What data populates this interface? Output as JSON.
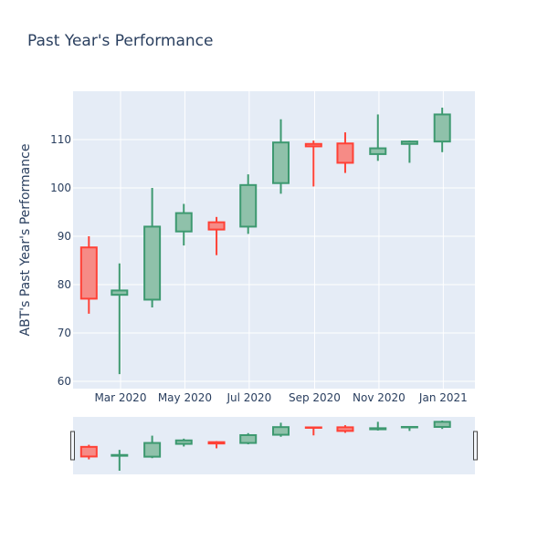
{
  "chart_data": {
    "type": "candlestick",
    "title": "Past Year's Performance",
    "xlabel": "",
    "ylabel": "ABT's Past Year's Performance",
    "ylim": [
      58.5,
      120
    ],
    "yticks": [
      60,
      70,
      80,
      90,
      100,
      110
    ],
    "xrange": [
      "2020-01-16",
      "2021-01-31"
    ],
    "xticks": [
      {
        "date": "2020-03-01",
        "label": "Mar 2020"
      },
      {
        "date": "2020-05-01",
        "label": "May 2020"
      },
      {
        "date": "2020-07-01",
        "label": "Jul 2020"
      },
      {
        "date": "2020-09-01",
        "label": "Sep 2020"
      },
      {
        "date": "2020-11-01",
        "label": "Nov 2020"
      },
      {
        "date": "2021-01-01",
        "label": "Jan 2021"
      }
    ],
    "grid": true,
    "rangeslider": true,
    "colors": {
      "increasing": "#3d9970",
      "increasing_fill": "#8fc1aa",
      "decreasing": "#ff4136",
      "decreasing_fill": "#f68b86",
      "plot_bg": "#e5ecf6",
      "title": "#2a3f5f"
    },
    "candles": [
      {
        "date": "2020-01-31",
        "open": 87.7,
        "high": 90.0,
        "low": 74.0,
        "close": 77.1
      },
      {
        "date": "2020-02-29",
        "open": 77.9,
        "high": 84.4,
        "low": 61.5,
        "close": 78.8
      },
      {
        "date": "2020-03-31",
        "open": 76.9,
        "high": 100.0,
        "low": 75.3,
        "close": 92.0
      },
      {
        "date": "2020-04-30",
        "open": 91.0,
        "high": 96.7,
        "low": 88.1,
        "close": 94.8
      },
      {
        "date": "2020-05-31",
        "open": 92.9,
        "high": 94.0,
        "low": 86.1,
        "close": 91.4
      },
      {
        "date": "2020-06-30",
        "open": 92.0,
        "high": 102.8,
        "low": 90.5,
        "close": 100.6
      },
      {
        "date": "2020-07-31",
        "open": 101.0,
        "high": 114.2,
        "low": 98.8,
        "close": 109.4
      },
      {
        "date": "2020-08-31",
        "open": 109.1,
        "high": 109.8,
        "low": 100.3,
        "close": 108.6
      },
      {
        "date": "2020-09-30",
        "open": 109.2,
        "high": 111.5,
        "low": 103.1,
        "close": 105.2
      },
      {
        "date": "2020-10-31",
        "open": 107.0,
        "high": 115.2,
        "low": 105.6,
        "close": 108.2
      },
      {
        "date": "2020-11-30",
        "open": 109.1,
        "high": 109.8,
        "low": 105.2,
        "close": 109.6
      },
      {
        "date": "2020-12-31",
        "open": 109.6,
        "high": 116.6,
        "low": 107.4,
        "close": 115.2
      }
    ]
  }
}
